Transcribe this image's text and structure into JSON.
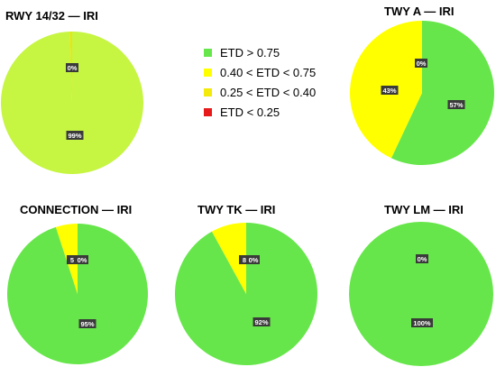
{
  "legend": [
    {
      "label": "ETD > 0.75",
      "color": "#66e64a"
    },
    {
      "label": "0.40 < ETD < 0.75",
      "color": "#ffff00"
    },
    {
      "label": "0.25 < ETD < 0.40",
      "color": "#f3e90b"
    },
    {
      "label": "ETD < 0.25",
      "color": "#e61a1a"
    }
  ],
  "chart_data": [
    {
      "type": "pie",
      "title": "RWY 14/32 — IRI",
      "slices": [
        {
          "category": "ETD > 0.75",
          "value": 99,
          "color": "#c6f542",
          "label": "99%"
        },
        {
          "category": "0.40 < ETD < 0.75",
          "value": 0.5,
          "color": "#e8e60e",
          "label": "0%"
        }
      ]
    },
    {
      "type": "pie",
      "title": "TWY A — IRI",
      "slices": [
        {
          "category": "ETD > 0.75",
          "value": 57,
          "color": "#66e64a",
          "label": "57%"
        },
        {
          "category": "0.40 < ETD < 0.75",
          "value": 43,
          "color": "#ffff00",
          "label": "43%"
        },
        {
          "category": "0.25 < ETD < 0.40",
          "value": 0,
          "color": "#f3e90b",
          "label": "0%"
        }
      ]
    },
    {
      "type": "pie",
      "title": "CONNECTION — IRI",
      "slices": [
        {
          "category": "ETD > 0.75",
          "value": 95,
          "color": "#66e64a",
          "label": "95%"
        },
        {
          "category": "0.40 < ETD < 0.75",
          "value": 5,
          "color": "#ffff00",
          "label": "5"
        },
        {
          "category": "0.25 < ETD < 0.40",
          "value": 0,
          "color": "#f3e90b",
          "label": "0%"
        }
      ]
    },
    {
      "type": "pie",
      "title": "TWY TK — IRI",
      "slices": [
        {
          "category": "ETD > 0.75",
          "value": 92,
          "color": "#66e64a",
          "label": "92%"
        },
        {
          "category": "0.40 < ETD < 0.75",
          "value": 8,
          "color": "#ffff00",
          "label": "8"
        },
        {
          "category": "0.25 < ETD < 0.40",
          "value": 0,
          "color": "#f3e90b",
          "label": "0%"
        }
      ]
    },
    {
      "type": "pie",
      "title": "TWY LM — IRI",
      "slices": [
        {
          "category": "ETD > 0.75",
          "value": 100,
          "color": "#66e64a",
          "label": "100%"
        },
        {
          "category": "0.40 < ETD < 0.75",
          "value": 0,
          "color": "#ffff00",
          "label": "0%"
        }
      ]
    }
  ]
}
